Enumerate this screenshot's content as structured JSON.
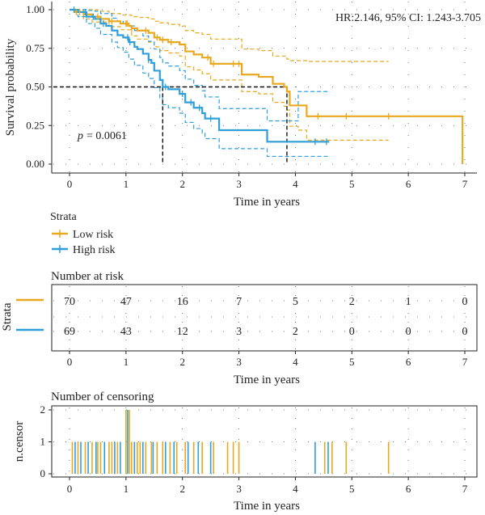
{
  "chart_data": [
    {
      "type": "line",
      "kind": "kaplan-meier",
      "xlabel": "Time in years",
      "ylabel": "Survival probability",
      "xlim": [
        0,
        7
      ],
      "ylim": [
        0,
        1
      ],
      "x_ticks": [
        "0",
        "1",
        "2",
        "3",
        "4",
        "5",
        "6",
        "7"
      ],
      "y_ticks": [
        "0.00",
        "0.25",
        "0.50",
        "0.75",
        "1.00"
      ],
      "grid": "dotted",
      "annotations": {
        "hr": "HR:2.146, 95% CI: 1.243-3.705",
        "p_symbol": "p",
        "p_value": "= 0.0061"
      },
      "median_line_y": 0.5,
      "series": [
        {
          "name": "Low risk",
          "color": "#E8A81F",
          "median": 3.85,
          "steps": [
            [
              0,
              1.0
            ],
            [
              0.1,
              0.985
            ],
            [
              0.25,
              0.97
            ],
            [
              0.4,
              0.955
            ],
            [
              0.55,
              0.94
            ],
            [
              0.7,
              0.925
            ],
            [
              0.9,
              0.91
            ],
            [
              1.05,
              0.895
            ],
            [
              1.1,
              0.88
            ],
            [
              1.2,
              0.865
            ],
            [
              1.4,
              0.85
            ],
            [
              1.5,
              0.82
            ],
            [
              1.6,
              0.805
            ],
            [
              1.75,
              0.79
            ],
            [
              1.95,
              0.775
            ],
            [
              2.05,
              0.73
            ],
            [
              2.2,
              0.71
            ],
            [
              2.35,
              0.69
            ],
            [
              2.5,
              0.65
            ],
            [
              2.85,
              0.65
            ],
            [
              3.05,
              0.58
            ],
            [
              3.35,
              0.565
            ],
            [
              3.6,
              0.52
            ],
            [
              3.8,
              0.5
            ],
            [
              3.85,
              0.47
            ],
            [
              3.9,
              0.38
            ],
            [
              4.05,
              0.38
            ],
            [
              4.2,
              0.31
            ],
            [
              4.95,
              0.31
            ],
            [
              6.95,
              0.31
            ],
            [
              6.96,
              0.0
            ]
          ],
          "end_x": 6.96,
          "ci_upper": [
            [
              0,
              1.0
            ],
            [
              0.25,
              1.0
            ],
            [
              0.5,
              0.99
            ],
            [
              0.7,
              0.975
            ],
            [
              0.9,
              0.965
            ],
            [
              1.1,
              0.955
            ],
            [
              1.2,
              0.95
            ],
            [
              1.4,
              0.94
            ],
            [
              1.5,
              0.925
            ],
            [
              1.6,
              0.915
            ],
            [
              1.75,
              0.905
            ],
            [
              1.95,
              0.895
            ],
            [
              2.05,
              0.865
            ],
            [
              2.2,
              0.85
            ],
            [
              2.35,
              0.84
            ],
            [
              2.5,
              0.81
            ],
            [
              2.85,
              0.81
            ],
            [
              3.05,
              0.745
            ],
            [
              3.35,
              0.735
            ],
            [
              3.6,
              0.7
            ],
            [
              3.85,
              0.68
            ],
            [
              3.9,
              0.67
            ],
            [
              4.2,
              0.665
            ],
            [
              5.65,
              0.665
            ]
          ],
          "ci_lower": [
            [
              0,
              1.0
            ],
            [
              0.25,
              0.94
            ],
            [
              0.4,
              0.92
            ],
            [
              0.7,
              0.89
            ],
            [
              0.9,
              0.87
            ],
            [
              1.1,
              0.83
            ],
            [
              1.2,
              0.81
            ],
            [
              1.4,
              0.79
            ],
            [
              1.5,
              0.76
            ],
            [
              1.6,
              0.735
            ],
            [
              1.75,
              0.72
            ],
            [
              1.95,
              0.7
            ],
            [
              2.05,
              0.63
            ],
            [
              2.2,
              0.61
            ],
            [
              2.35,
              0.585
            ],
            [
              2.5,
              0.545
            ],
            [
              2.85,
              0.545
            ],
            [
              3.05,
              0.47
            ],
            [
              3.35,
              0.455
            ],
            [
              3.6,
              0.4
            ],
            [
              3.8,
              0.375
            ],
            [
              3.85,
              0.35
            ],
            [
              3.9,
              0.245
            ],
            [
              4.05,
              0.22
            ],
            [
              4.2,
              0.155
            ],
            [
              5.65,
              0.155
            ]
          ],
          "ci_end_x": 5.65,
          "censor_times": [
            0.12,
            0.18,
            0.5,
            0.75,
            1.0,
            1.02,
            1.1,
            1.35,
            1.55,
            1.65,
            1.8,
            2.45,
            2.55,
            2.9,
            3.0,
            4.4,
            4.9,
            5.65
          ]
        },
        {
          "name": "High risk",
          "color": "#2E9FDA",
          "median": 1.65,
          "steps": [
            [
              0,
              1.0
            ],
            [
              0.15,
              0.985
            ],
            [
              0.3,
              0.955
            ],
            [
              0.45,
              0.94
            ],
            [
              0.55,
              0.91
            ],
            [
              0.65,
              0.895
            ],
            [
              0.75,
              0.865
            ],
            [
              0.85,
              0.835
            ],
            [
              0.95,
              0.82
            ],
            [
              1.05,
              0.79
            ],
            [
              1.15,
              0.76
            ],
            [
              1.2,
              0.745
            ],
            [
              1.3,
              0.715
            ],
            [
              1.4,
              0.675
            ],
            [
              1.45,
              0.655
            ],
            [
              1.5,
              0.605
            ],
            [
              1.6,
              0.545
            ],
            [
              1.65,
              0.5
            ],
            [
              1.75,
              0.485
            ],
            [
              1.95,
              0.455
            ],
            [
              2.05,
              0.4
            ],
            [
              2.2,
              0.365
            ],
            [
              2.35,
              0.33
            ],
            [
              2.4,
              0.295
            ],
            [
              2.65,
              0.22
            ],
            [
              3.0,
              0.22
            ],
            [
              3.45,
              0.22
            ],
            [
              3.5,
              0.145
            ],
            [
              4.6,
              0.145
            ]
          ],
          "end_x": 4.6,
          "ci_upper": [
            [
              0,
              1.0
            ],
            [
              0.15,
              1.0
            ],
            [
              0.3,
              0.995
            ],
            [
              0.45,
              0.99
            ],
            [
              0.55,
              0.975
            ],
            [
              0.75,
              0.945
            ],
            [
              0.85,
              0.925
            ],
            [
              0.95,
              0.91
            ],
            [
              1.05,
              0.895
            ],
            [
              1.15,
              0.865
            ],
            [
              1.3,
              0.83
            ],
            [
              1.4,
              0.795
            ],
            [
              1.5,
              0.745
            ],
            [
              1.6,
              0.69
            ],
            [
              1.65,
              0.655
            ],
            [
              1.75,
              0.635
            ],
            [
              1.95,
              0.605
            ],
            [
              2.05,
              0.55
            ],
            [
              2.2,
              0.51
            ],
            [
              2.35,
              0.475
            ],
            [
              2.4,
              0.435
            ],
            [
              2.65,
              0.36
            ],
            [
              3.45,
              0.36
            ],
            [
              3.5,
              0.28
            ],
            [
              4.0,
              0.28
            ],
            [
              4.05,
              0.47
            ],
            [
              4.6,
              0.47
            ]
          ],
          "ci_lower": [
            [
              0,
              1.0
            ],
            [
              0.15,
              0.955
            ],
            [
              0.3,
              0.91
            ],
            [
              0.45,
              0.88
            ],
            [
              0.55,
              0.84
            ],
            [
              0.75,
              0.79
            ],
            [
              0.85,
              0.755
            ],
            [
              0.95,
              0.725
            ],
            [
              1.05,
              0.68
            ],
            [
              1.15,
              0.64
            ],
            [
              1.3,
              0.59
            ],
            [
              1.4,
              0.555
            ],
            [
              1.5,
              0.495
            ],
            [
              1.6,
              0.425
            ],
            [
              1.65,
              0.385
            ],
            [
              1.75,
              0.365
            ],
            [
              1.95,
              0.33
            ],
            [
              2.05,
              0.27
            ],
            [
              2.2,
              0.23
            ],
            [
              2.35,
              0.2
            ],
            [
              2.4,
              0.165
            ],
            [
              2.65,
              0.1
            ],
            [
              3.5,
              0.05
            ],
            [
              4.6,
              0.05
            ]
          ],
          "ci_end_x": 4.6,
          "censor_times": [
            0.08,
            0.28,
            0.42,
            0.6,
            1.03,
            1.07,
            1.4,
            1.7,
            2.0,
            2.15,
            2.3,
            2.5,
            4.35,
            4.55
          ]
        }
      ]
    },
    {
      "type": "table",
      "kind": "risk-table",
      "title": "Number at risk",
      "ylabel": "Strata",
      "xlabel": "Time in years",
      "x_ticks": [
        "0",
        "1",
        "2",
        "3",
        "4",
        "5",
        "6",
        "7"
      ],
      "rows": [
        {
          "name": "Low risk",
          "color": "#E8A81F",
          "values": [
            "70",
            "47",
            "16",
            "7",
            "5",
            "2",
            "1",
            "0"
          ]
        },
        {
          "name": "High risk",
          "color": "#2E9FDA",
          "values": [
            "69",
            "43",
            "12",
            "3",
            "2",
            "0",
            "0",
            "0"
          ]
        }
      ]
    },
    {
      "type": "bar",
      "kind": "censoring-plot",
      "title": "Number of censoring",
      "ylabel": "n.censor",
      "xlabel": "Time in years",
      "x_ticks": [
        "0",
        "1",
        "2",
        "3",
        "4",
        "5",
        "6",
        "7"
      ],
      "y_ticks": [
        "0",
        "1",
        "2"
      ],
      "ylim": [
        0,
        2
      ],
      "events": [
        {
          "x": 0.05,
          "n": 1,
          "series": "Low risk"
        },
        {
          "x": 0.1,
          "n": 1,
          "series": "High risk"
        },
        {
          "x": 0.15,
          "n": 1,
          "series": "Low risk"
        },
        {
          "x": 0.2,
          "n": 1,
          "series": "High risk"
        },
        {
          "x": 0.28,
          "n": 1,
          "series": "Low risk"
        },
        {
          "x": 0.33,
          "n": 1,
          "series": "High risk"
        },
        {
          "x": 0.4,
          "n": 1,
          "series": "Low risk"
        },
        {
          "x": 0.47,
          "n": 1,
          "series": "High risk"
        },
        {
          "x": 0.5,
          "n": 1,
          "series": "Low risk"
        },
        {
          "x": 0.55,
          "n": 1,
          "series": "Low risk"
        },
        {
          "x": 0.62,
          "n": 1,
          "series": "High risk"
        },
        {
          "x": 0.7,
          "n": 1,
          "series": "Low risk"
        },
        {
          "x": 0.75,
          "n": 1,
          "series": "Low risk"
        },
        {
          "x": 0.8,
          "n": 1,
          "series": "High risk"
        },
        {
          "x": 0.85,
          "n": 1,
          "series": "Low risk"
        },
        {
          "x": 0.9,
          "n": 1,
          "series": "High risk"
        },
        {
          "x": 1.0,
          "n": 2,
          "series": "Low risk"
        },
        {
          "x": 1.03,
          "n": 2,
          "series": "High risk"
        },
        {
          "x": 1.06,
          "n": 2,
          "series": "Low risk"
        },
        {
          "x": 1.1,
          "n": 1,
          "series": "Low risk"
        },
        {
          "x": 1.15,
          "n": 1,
          "series": "High risk"
        },
        {
          "x": 1.2,
          "n": 1,
          "series": "Low risk"
        },
        {
          "x": 1.25,
          "n": 1,
          "series": "Low risk"
        },
        {
          "x": 1.3,
          "n": 1,
          "series": "High risk"
        },
        {
          "x": 1.35,
          "n": 1,
          "series": "Low risk"
        },
        {
          "x": 1.45,
          "n": 1,
          "series": "Low risk"
        },
        {
          "x": 1.48,
          "n": 1,
          "series": "High risk"
        },
        {
          "x": 1.55,
          "n": 1,
          "series": "Low risk"
        },
        {
          "x": 1.65,
          "n": 1,
          "series": "Low risk"
        },
        {
          "x": 1.7,
          "n": 1,
          "series": "High risk"
        },
        {
          "x": 1.78,
          "n": 1,
          "series": "Low risk"
        },
        {
          "x": 1.85,
          "n": 1,
          "series": "High risk"
        },
        {
          "x": 1.9,
          "n": 1,
          "series": "Low risk"
        },
        {
          "x": 2.05,
          "n": 1,
          "series": "Low risk"
        },
        {
          "x": 2.1,
          "n": 1,
          "series": "High risk"
        },
        {
          "x": 2.2,
          "n": 1,
          "series": "Low risk"
        },
        {
          "x": 2.28,
          "n": 1,
          "series": "High risk"
        },
        {
          "x": 2.35,
          "n": 1,
          "series": "Low risk"
        },
        {
          "x": 2.5,
          "n": 1,
          "series": "High risk"
        },
        {
          "x": 2.55,
          "n": 1,
          "series": "Low risk"
        },
        {
          "x": 2.8,
          "n": 1,
          "series": "Low risk"
        },
        {
          "x": 2.9,
          "n": 1,
          "series": "Low risk"
        },
        {
          "x": 3.0,
          "n": 1,
          "series": "Low risk"
        },
        {
          "x": 4.35,
          "n": 1,
          "series": "High risk"
        },
        {
          "x": 4.52,
          "n": 1,
          "series": "Low risk"
        },
        {
          "x": 4.58,
          "n": 1,
          "series": "High risk"
        },
        {
          "x": 4.65,
          "n": 1,
          "series": "Low risk"
        },
        {
          "x": 4.9,
          "n": 1,
          "series": "Low risk"
        },
        {
          "x": 5.65,
          "n": 1,
          "series": "Low risk"
        }
      ]
    }
  ],
  "legend": {
    "title": "Strata",
    "items": [
      {
        "label": "Low risk",
        "color": "#E8A81F"
      },
      {
        "label": "High risk",
        "color": "#2E9FDA"
      }
    ]
  }
}
